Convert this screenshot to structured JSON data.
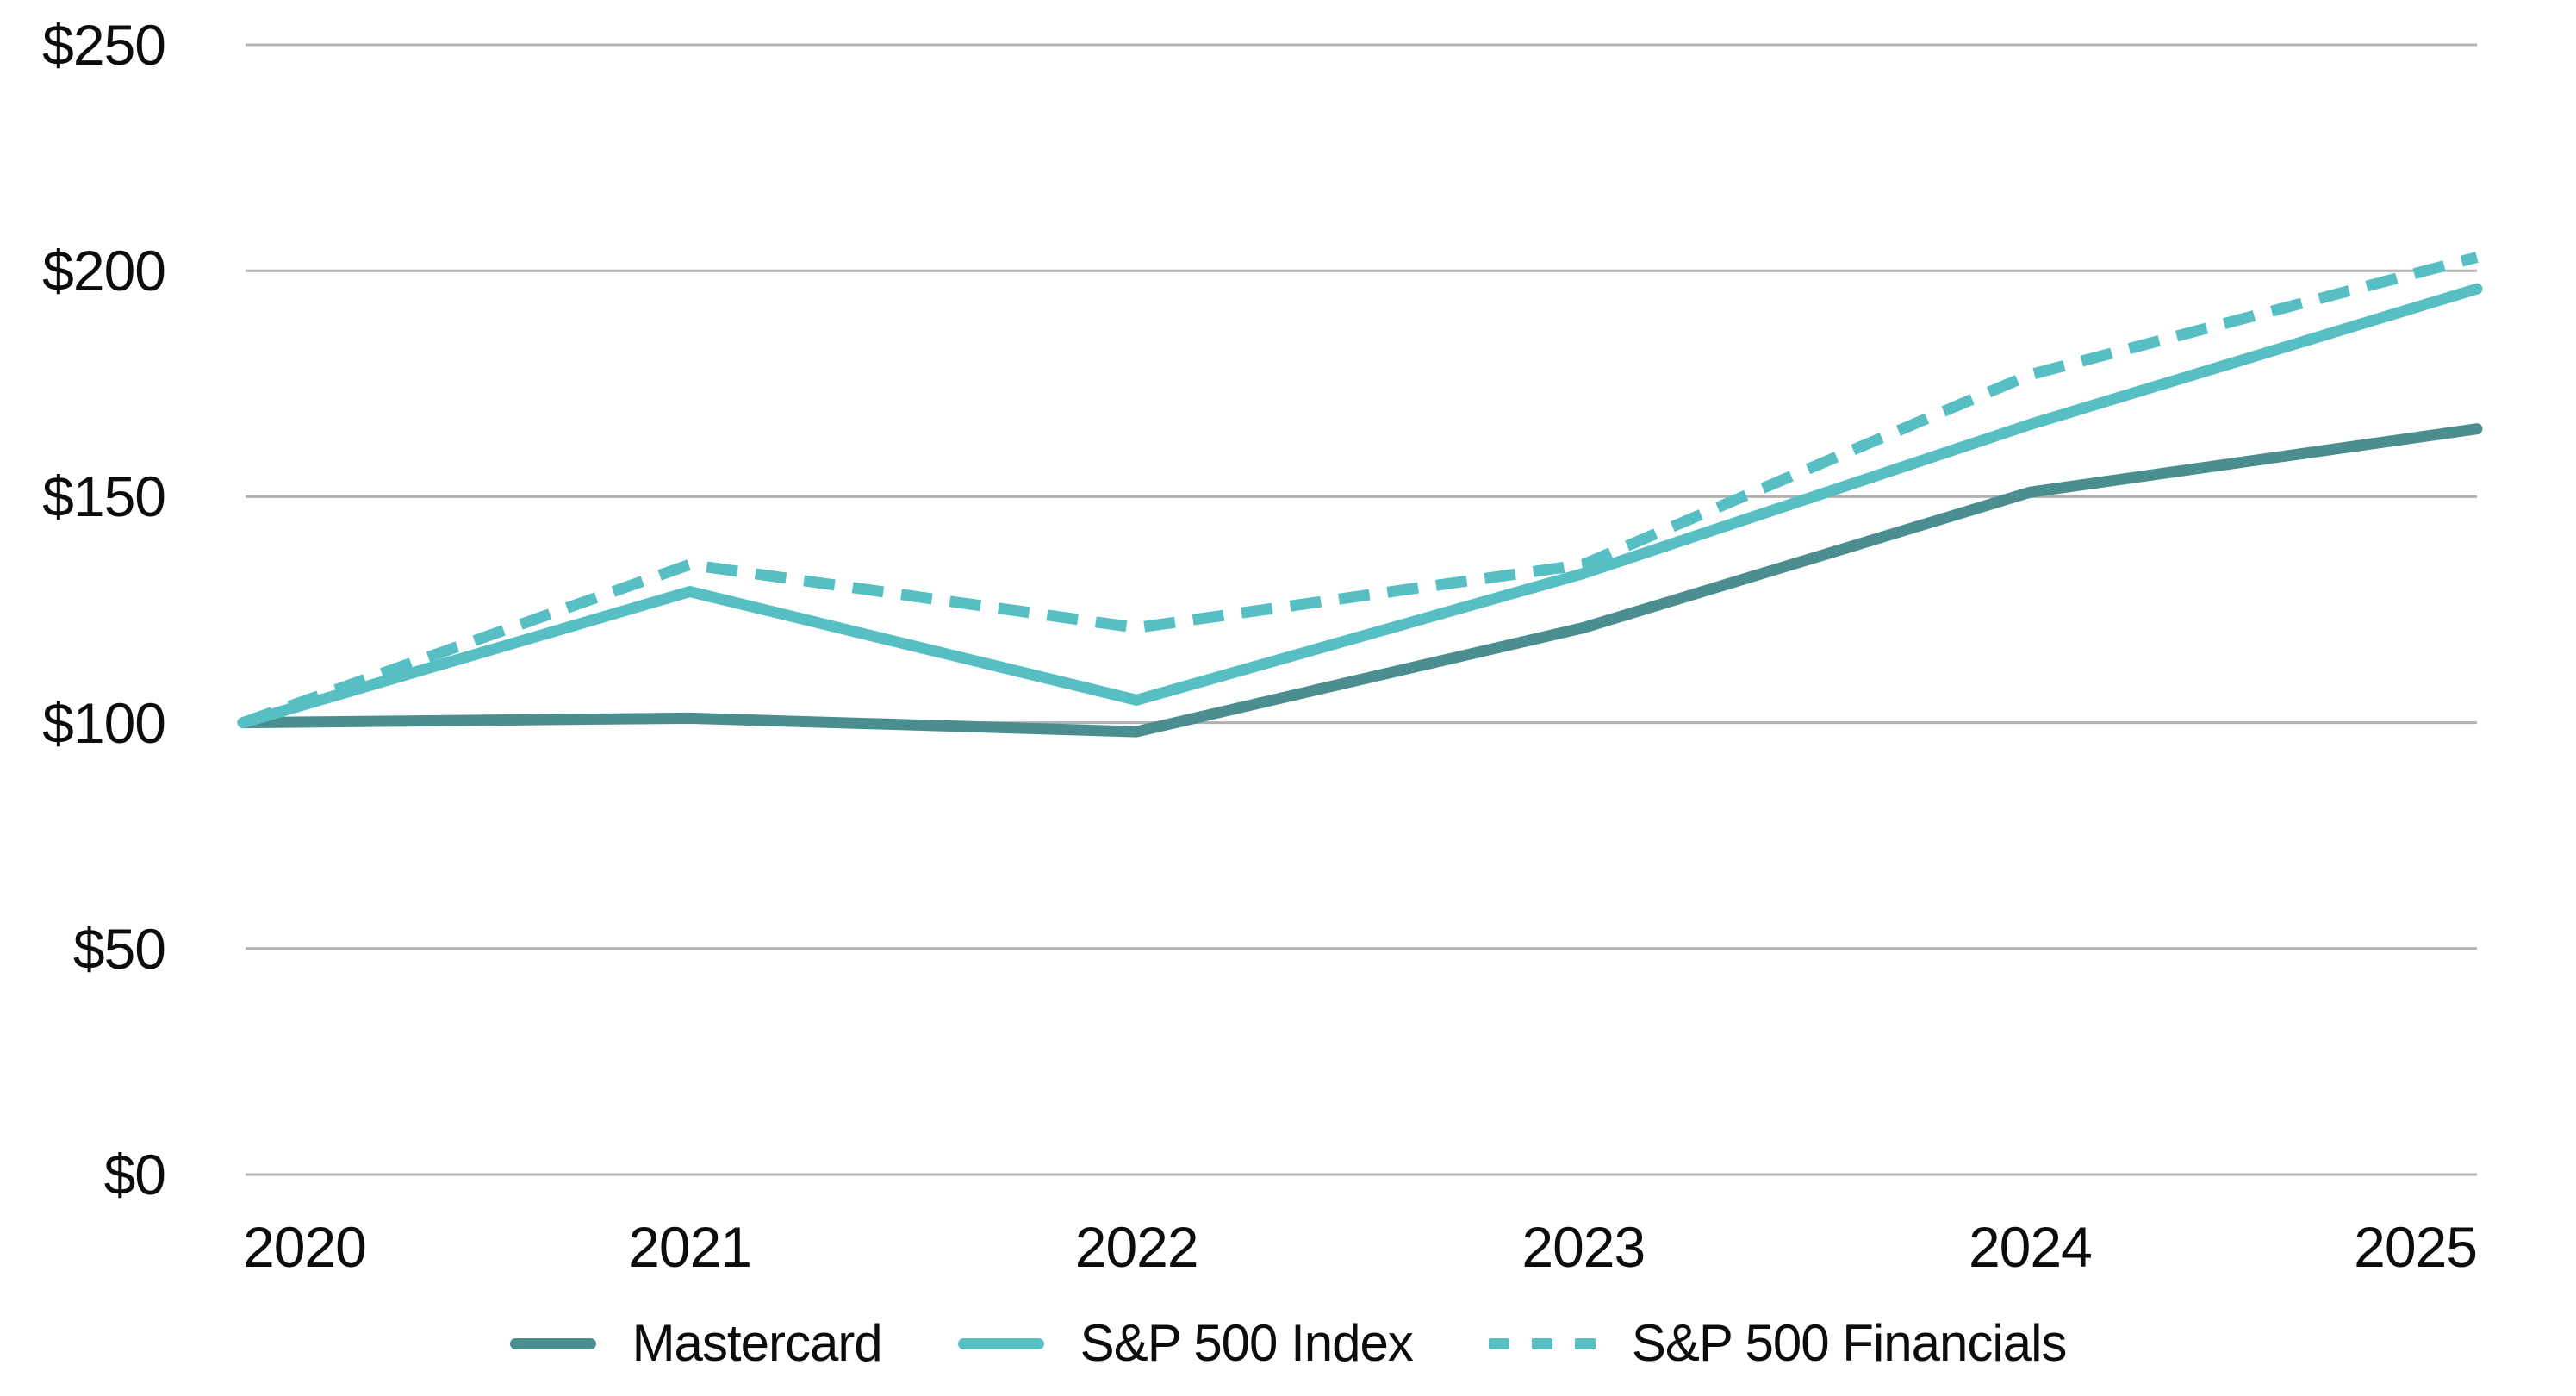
{
  "chart_data": {
    "type": "line",
    "title": "",
    "categories": [
      "2020",
      "2021",
      "2022",
      "2023",
      "2024",
      "2025"
    ],
    "y_ticks": [
      0,
      50,
      100,
      150,
      200,
      250
    ],
    "y_tick_labels": [
      "$0",
      "$50",
      "$100",
      "$150",
      "$200",
      "$250"
    ],
    "ylim": [
      0,
      250
    ],
    "grid": "horizontal-only",
    "legend_position": "bottom-center",
    "series": [
      {
        "name": "Mastercard",
        "style": "solid",
        "color": "#4a8e8f",
        "values": [
          100,
          101,
          98,
          121,
          151,
          165
        ]
      },
      {
        "name": "S&P 500 Index",
        "style": "solid",
        "color": "#57bfc4",
        "values": [
          100,
          129,
          105,
          133,
          166,
          196
        ]
      },
      {
        "name": "S&P 500 Financials",
        "style": "dashed",
        "color": "#57bfc4",
        "values": [
          100,
          135,
          121,
          135,
          177,
          203
        ]
      }
    ]
  },
  "colors": {
    "background": "#ffffff",
    "gridline": "#b1b1b1",
    "axis_text": "#0c0c0c",
    "accent_dark_teal": "#4a8e8f",
    "accent_light_teal": "#57bfc4"
  }
}
